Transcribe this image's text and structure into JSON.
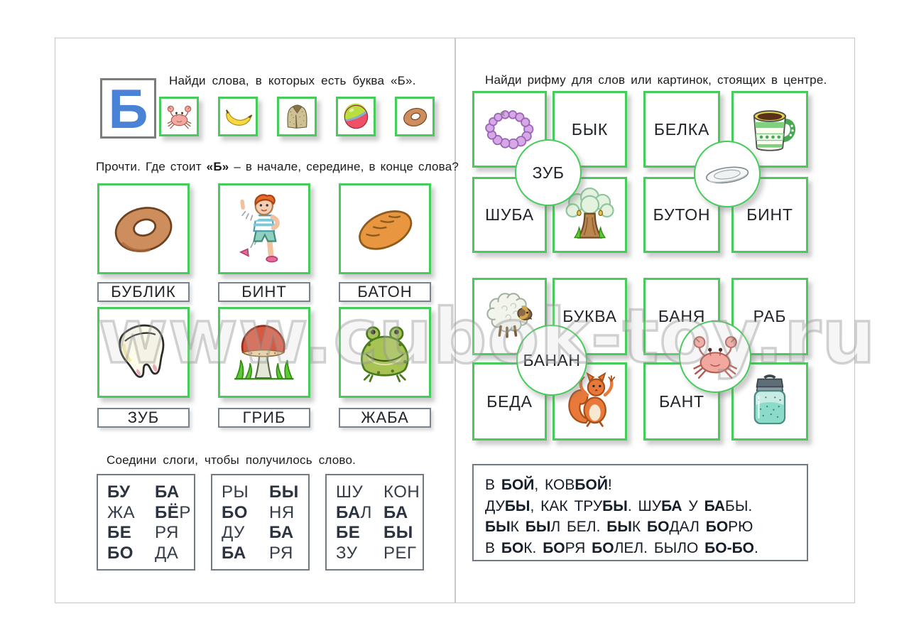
{
  "watermark": "www.cubok-toy.ru",
  "left_page": {
    "letter": "Б",
    "task1": {
      "title": "Найди слова, в которых есть буква «Б».",
      "icons": [
        "crab",
        "banana",
        "fur-coat",
        "ball",
        "bagel"
      ]
    },
    "task2": {
      "title_segments": [
        {
          "t": "Прочти. Где стоит "
        },
        {
          "t": "«Б»",
          "b": true
        },
        {
          "t": " – в начале, середине, в конце слова?"
        }
      ],
      "cards": [
        {
          "icon": "bagel",
          "label": "БУБЛИК"
        },
        {
          "icon": "boy-bandage",
          "label": "БИНТ"
        },
        {
          "icon": "bread-loaf",
          "label": "БАТОН"
        },
        {
          "icon": "tooth",
          "label": "ЗУБ"
        },
        {
          "icon": "mushroom",
          "label": "ГРИБ"
        },
        {
          "icon": "frog",
          "label": "ЖАБА"
        }
      ]
    },
    "task3": {
      "title": "Соедини слоги, чтобы получилось слово.",
      "boxes": [
        {
          "rows": [
            {
              "left": [
                {
                  "t": "БУ",
                  "b": true
                }
              ],
              "right": [
                {
                  "t": "БА",
                  "b": true
                }
              ]
            },
            {
              "left": [
                {
                  "t": "ЖА"
                }
              ],
              "right": [
                {
                  "t": "БЁ",
                  "b": true
                },
                {
                  "t": "Р"
                }
              ]
            },
            {
              "left": [
                {
                  "t": "БЕ",
                  "b": true
                }
              ],
              "right": [
                {
                  "t": "РЯ"
                }
              ]
            },
            {
              "left": [
                {
                  "t": "БО",
                  "b": true
                }
              ],
              "right": [
                {
                  "t": "ДА"
                }
              ]
            }
          ]
        },
        {
          "rows": [
            {
              "left": [
                {
                  "t": "РЫ"
                }
              ],
              "right": [
                {
                  "t": "БЫ",
                  "b": true
                }
              ]
            },
            {
              "left": [
                {
                  "t": "БО",
                  "b": true
                }
              ],
              "right": [
                {
                  "t": "НЯ"
                }
              ]
            },
            {
              "left": [
                {
                  "t": "ДУ"
                }
              ],
              "right": [
                {
                  "t": "БА",
                  "b": true
                }
              ]
            },
            {
              "left": [
                {
                  "t": "БА",
                  "b": true
                }
              ],
              "right": [
                {
                  "t": "РЯ"
                }
              ]
            }
          ]
        },
        {
          "rows": [
            {
              "left": [
                {
                  "t": "ШУ"
                }
              ],
              "right": [
                {
                  "t": "КОН"
                }
              ]
            },
            {
              "left": [
                {
                  "t": "БА",
                  "b": true
                },
                {
                  "t": "Л"
                }
              ],
              "right": [
                {
                  "t": "БА",
                  "b": true
                }
              ]
            },
            {
              "left": [
                {
                  "t": "БЕ",
                  "b": true
                }
              ],
              "right": [
                {
                  "t": "БЫ",
                  "b": true
                }
              ]
            },
            {
              "left": [
                {
                  "t": "ЗУ"
                }
              ],
              "right": [
                {
                  "t": "РЕГ"
                }
              ]
            }
          ]
        }
      ]
    }
  },
  "right_page": {
    "title": "Найди рифму для слов или картинок, стоящих в центре.",
    "grids": [
      {
        "cells": [
          {
            "icon": "necklace"
          },
          {
            "text": "БЫК"
          },
          {
            "text": "БЕЛКА"
          },
          {
            "icon": "mug"
          },
          {
            "text": "ШУБА"
          },
          {
            "icon": "oak-tree"
          },
          {
            "text": "БУТОН"
          },
          {
            "text": "БИНТ"
          }
        ],
        "circles": [
          {
            "text": "ЗУБ"
          },
          {
            "icon": "plate"
          }
        ]
      },
      {
        "cells": [
          {
            "icon": "sheep"
          },
          {
            "text": "БУКВА"
          },
          {
            "text": "БАНЯ"
          },
          {
            "text": "РАБ"
          },
          {
            "text": "БЕДА"
          },
          {
            "icon": "squirrel"
          },
          {
            "text": "БАНТ"
          },
          {
            "icon": "jar"
          }
        ],
        "circles": [
          {
            "text": "БАНАН"
          },
          {
            "icon": "crab"
          }
        ]
      }
    ],
    "reading_box": {
      "lines": [
        [
          {
            "t": "В "
          },
          {
            "t": "БОЙ",
            "b": true
          },
          {
            "t": ", КОВ"
          },
          {
            "t": "БОЙ",
            "b": true
          },
          {
            "t": "!"
          }
        ],
        [
          {
            "t": "ДУ"
          },
          {
            "t": "БЫ",
            "b": true
          },
          {
            "t": ", КАК ТРУ"
          },
          {
            "t": "БЫ",
            "b": true
          },
          {
            "t": ". ШУ"
          },
          {
            "t": "БА",
            "b": true
          },
          {
            "t": " У "
          },
          {
            "t": "БА",
            "b": true
          },
          {
            "t": "БЫ."
          }
        ],
        [
          {
            "t": "БЫ",
            "b": true
          },
          {
            "t": "К "
          },
          {
            "t": "БЫ",
            "b": true
          },
          {
            "t": "Л БЕЛ. "
          },
          {
            "t": "БЫ",
            "b": true
          },
          {
            "t": "К "
          },
          {
            "t": "БО",
            "b": true
          },
          {
            "t": "ДАЛ "
          },
          {
            "t": "БО",
            "b": true
          },
          {
            "t": "РЮ"
          }
        ],
        [
          {
            "t": "В "
          },
          {
            "t": "БО",
            "b": true
          },
          {
            "t": "К. "
          },
          {
            "t": "БО",
            "b": true
          },
          {
            "t": "РЯ "
          },
          {
            "t": "БО",
            "b": true
          },
          {
            "t": "ЛЕЛ. БЫЛО "
          },
          {
            "t": "БО-БО",
            "b": true
          },
          {
            "t": "."
          }
        ]
      ]
    }
  },
  "colors": {
    "card_border_green": "#46cc5a",
    "letter_blue": "#4a82d6",
    "box_border_gray": "#6e7b86"
  }
}
